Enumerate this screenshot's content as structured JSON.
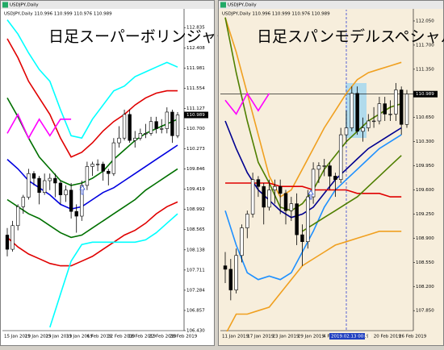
{
  "windows": [
    {
      "title": "USDJPY,Daily",
      "heading": "日足スーパーボリンジャー",
      "info": "USDJPY,Daily 110.996 110.999 110.976 110.989",
      "ylim": [
        106.43,
        113.18
      ],
      "price_ticks": [
        112.835,
        112.408,
        111.981,
        111.554,
        111.127,
        {
          "value": 110.7,
          "label": "110.700"
        },
        110.273,
        109.846,
        109.419,
        108.992,
        108.565,
        108.138,
        107.711,
        107.284,
        106.857,
        {
          "value": 106.43,
          "label": "106.430"
        }
      ],
      "current_price": 110.989,
      "date_labels": [
        "15 Jan 2019",
        "21 Jan 2019",
        "25 Jan 2019",
        "31 Jan 2019",
        "6 Feb 2019",
        "12 Feb 2019",
        "18 Feb 2019",
        "22 Feb 2019",
        "28 Feb 2019"
      ],
      "candles": [
        [
          108.45,
          108.6,
          108.0,
          108.15
        ],
        [
          108.15,
          108.75,
          108.1,
          108.65
        ],
        [
          108.65,
          109.1,
          108.55,
          109.05
        ],
        [
          109.05,
          109.3,
          108.9,
          109.25
        ],
        [
          109.25,
          109.85,
          109.2,
          109.75
        ],
        [
          109.75,
          109.8,
          109.5,
          109.65
        ],
        [
          109.65,
          109.7,
          109.1,
          109.35
        ],
        [
          109.35,
          109.75,
          109.3,
          109.6
        ],
        [
          109.6,
          109.75,
          109.4,
          109.65
        ],
        [
          109.65,
          109.75,
          109.25,
          109.55
        ],
        [
          109.55,
          109.6,
          109.1,
          109.3
        ],
        [
          109.3,
          109.5,
          109.15,
          109.4
        ],
        [
          109.4,
          109.55,
          108.8,
          108.95
        ],
        [
          108.95,
          109.1,
          108.5,
          108.85
        ],
        [
          108.85,
          109.6,
          108.75,
          109.5
        ],
        [
          109.5,
          110.0,
          109.4,
          109.9
        ],
        [
          109.9,
          110.0,
          109.7,
          109.95
        ],
        [
          109.95,
          110.05,
          109.8,
          109.95
        ],
        [
          109.95,
          110.0,
          109.6,
          109.8
        ],
        [
          109.8,
          109.85,
          109.5,
          109.75
        ],
        [
          109.75,
          110.5,
          109.7,
          110.4
        ],
        [
          110.4,
          110.75,
          110.3,
          110.5
        ],
        [
          110.5,
          111.1,
          110.45,
          111.0
        ],
        [
          111.0,
          111.1,
          110.4,
          110.45
        ],
        [
          110.45,
          110.65,
          110.3,
          110.5
        ],
        [
          110.5,
          110.7,
          110.45,
          110.6
        ],
        [
          110.6,
          110.8,
          110.5,
          110.6
        ],
        [
          110.6,
          110.95,
          110.55,
          110.85
        ],
        [
          110.85,
          110.95,
          110.6,
          110.7
        ],
        [
          110.7,
          110.9,
          110.6,
          110.7
        ],
        [
          110.7,
          111.15,
          110.6,
          111.05
        ],
        [
          111.05,
          111.1,
          110.4,
          110.55
        ],
        [
          110.55,
          111.05,
          110.5,
          110.99
        ]
      ],
      "lines": [
        {
          "color": "#00ffff",
          "values": [
            113.0,
            112.7,
            112.3,
            111.95,
            111.7,
            111.1,
            110.55,
            110.5,
            110.9,
            111.2,
            111.5,
            111.6,
            111.8,
            111.9,
            112.0,
            112.1,
            112.0
          ]
        },
        {
          "color": "#e00000",
          "values": [
            112.6,
            112.2,
            111.7,
            111.35,
            111.0,
            110.5,
            110.1,
            110.2,
            110.4,
            110.65,
            110.85,
            111.0,
            111.2,
            111.35,
            111.45,
            111.5,
            111.5
          ]
        },
        {
          "color": "#007000",
          "values": [
            111.35,
            110.95,
            110.5,
            110.1,
            109.85,
            109.6,
            109.5,
            109.55,
            109.65,
            109.8,
            110.05,
            110.25,
            110.45,
            110.6,
            110.7,
            110.8,
            110.9
          ]
        },
        {
          "color": "#0000e0",
          "values": [
            110.05,
            109.85,
            109.6,
            109.45,
            109.3,
            109.1,
            109.0,
            109.05,
            109.2,
            109.35,
            109.45,
            109.6,
            109.75,
            109.9,
            110.05,
            110.2,
            110.35
          ]
        },
        {
          "color": "#007000",
          "values": [
            109.2,
            109.05,
            108.9,
            108.8,
            108.65,
            108.5,
            108.4,
            108.45,
            108.6,
            108.75,
            108.9,
            109.05,
            109.2,
            109.4,
            109.55,
            109.7,
            109.85
          ]
        },
        {
          "color": "#e00000",
          "values": [
            108.4,
            108.2,
            108.05,
            107.95,
            107.85,
            107.8,
            107.8,
            107.9,
            108.0,
            108.15,
            108.3,
            108.45,
            108.55,
            108.7,
            108.9,
            109.05,
            109.15
          ]
        },
        {
          "color": "#00ffff",
          "values": [
            null,
            null,
            null,
            null,
            106.5,
            107.2,
            107.9,
            108.25,
            108.3,
            108.3,
            108.3,
            108.3,
            108.3,
            108.35,
            108.5,
            108.7,
            108.9
          ]
        },
        {
          "color": "#ff00ff",
          "values": [
            110.6,
            111.0,
            110.5,
            110.9,
            110.55,
            110.9,
            110.9,
            null,
            null,
            null,
            null,
            null,
            null,
            null,
            null,
            null,
            null
          ]
        }
      ]
    },
    {
      "title": "USDJPY,Daily",
      "heading": "日足スパンモデルスペシャル",
      "info": "USDJPY,Daily 110.996 110.999 110.976 110.989",
      "ylim": [
        107.56,
        112.19
      ],
      "price_ticks": [
        {
          "value": 112.05,
          "label": "112.050"
        },
        {
          "value": 111.7,
          "label": "111.700"
        },
        {
          "value": 111.35,
          "label": "111.350"
        },
        {
          "value": 110.65,
          "label": "110.650"
        },
        {
          "value": 110.3,
          "label": "110.300"
        },
        {
          "value": 109.95,
          "label": "109.950"
        },
        {
          "value": 109.6,
          "label": "109.600"
        },
        {
          "value": 109.25,
          "label": "109.250"
        },
        {
          "value": 108.9,
          "label": "108.900"
        },
        {
          "value": 108.55,
          "label": "108.550"
        },
        {
          "value": 108.2,
          "label": "108.200"
        },
        {
          "value": 107.85,
          "label": "107.850"
        }
      ],
      "current_price": 110.989,
      "date_labels": [
        "11 Jan 2019",
        "17 Jan 2019",
        "23 Jan 2019",
        "29 Jan 2019",
        "4 Feb 2019",
        "Feb 2019",
        "20 Feb 2019",
        "26 Feb 2019"
      ],
      "crosshair_label": "2019.02.13 00:00",
      "candles": [
        [
          108.5,
          108.7,
          108.25,
          108.45
        ],
        [
          108.45,
          108.6,
          108.0,
          108.15
        ],
        [
          108.15,
          108.75,
          108.1,
          108.65
        ],
        [
          108.65,
          109.1,
          108.55,
          109.05
        ],
        [
          109.05,
          109.3,
          108.9,
          109.25
        ],
        [
          109.25,
          109.85,
          109.2,
          109.75
        ],
        [
          109.75,
          109.8,
          109.5,
          109.65
        ],
        [
          109.65,
          109.7,
          109.1,
          109.35
        ],
        [
          109.35,
          109.75,
          109.3,
          109.6
        ],
        [
          109.6,
          109.75,
          109.4,
          109.65
        ],
        [
          109.65,
          109.75,
          109.25,
          109.55
        ],
        [
          109.55,
          109.6,
          109.1,
          109.3
        ],
        [
          109.3,
          109.5,
          109.15,
          109.4
        ],
        [
          109.4,
          109.55,
          108.8,
          108.95
        ],
        [
          108.95,
          109.1,
          108.5,
          108.85
        ],
        [
          108.85,
          109.6,
          108.75,
          109.5
        ],
        [
          109.5,
          110.0,
          109.4,
          109.9
        ],
        [
          109.9,
          110.0,
          109.7,
          109.95
        ],
        [
          109.95,
          110.05,
          109.8,
          109.95
        ],
        [
          109.95,
          110.0,
          109.6,
          109.8
        ],
        [
          109.8,
          109.85,
          109.5,
          109.75
        ],
        [
          109.75,
          110.5,
          109.7,
          110.4
        ],
        [
          110.4,
          110.75,
          110.3,
          110.5
        ],
        [
          110.5,
          111.1,
          110.45,
          111.0
        ],
        [
          111.0,
          111.1,
          110.4,
          110.45
        ],
        [
          110.45,
          110.65,
          110.3,
          110.5
        ],
        [
          110.5,
          110.7,
          110.45,
          110.6
        ],
        [
          110.6,
          110.8,
          110.5,
          110.6
        ],
        [
          110.6,
          110.95,
          110.55,
          110.85
        ],
        [
          110.85,
          110.95,
          110.6,
          110.7
        ],
        [
          110.7,
          110.9,
          110.6,
          110.7
        ],
        [
          110.7,
          111.15,
          110.6,
          111.05
        ],
        [
          111.05,
          111.1,
          110.4,
          110.55
        ],
        [
          110.55,
          111.05,
          110.5,
          110.99
        ]
      ],
      "lines": [
        {
          "color": "#f0a020",
          "values": [
            112.1,
            111.6,
            111.0,
            110.4,
            109.8,
            109.5,
            109.6,
            109.9,
            110.2,
            110.5,
            110.75,
            111.0,
            111.2,
            111.3,
            111.35,
            111.4,
            111.45
          ]
        },
        {
          "color": "#4f7f00",
          "values": [
            112.1,
            111.3,
            110.6,
            110.0,
            109.7,
            109.35,
            109.3,
            109.4,
            109.6,
            109.9,
            110.1,
            110.3,
            110.45,
            110.6,
            110.7,
            110.8,
            110.85
          ]
        },
        {
          "color": "#1e90ff",
          "values": [
            109.3,
            108.8,
            108.4,
            108.3,
            108.35,
            108.3,
            108.4,
            108.7,
            109.0,
            109.35,
            109.6,
            109.75,
            109.9,
            110.05,
            110.2,
            110.3,
            110.4
          ]
        },
        {
          "color": "#000090",
          "values": [
            110.6,
            110.2,
            109.85,
            109.6,
            109.45,
            109.3,
            109.2,
            109.25,
            109.35,
            109.55,
            109.75,
            109.9,
            110.05,
            110.2,
            110.3,
            110.4,
            110.5
          ]
        },
        {
          "color": "#e00000",
          "values": [
            109.7,
            109.7,
            109.7,
            109.7,
            109.7,
            109.65,
            109.65,
            109.65,
            109.6,
            109.6,
            109.6,
            109.6,
            109.55,
            109.55,
            109.55,
            109.5,
            109.5
          ]
        },
        {
          "color": "#4f7f00",
          "values": [
            null,
            null,
            null,
            null,
            null,
            null,
            null,
            109.0,
            109.1,
            109.2,
            109.3,
            109.4,
            109.5,
            109.65,
            109.8,
            109.95,
            110.1
          ]
        },
        {
          "color": "#f0a020",
          "values": [
            107.5,
            107.8,
            107.8,
            107.85,
            107.9,
            108.1,
            108.3,
            108.5,
            108.6,
            108.7,
            108.8,
            108.85,
            108.9,
            108.95,
            109.0,
            109.0,
            109.0
          ]
        },
        {
          "color": "#ff00ff",
          "values": [
            110.9,
            110.7,
            111.0,
            110.75,
            111.0,
            null,
            null,
            null,
            null,
            null,
            null,
            null,
            null,
            null,
            null,
            null,
            null
          ]
        }
      ]
    }
  ]
}
